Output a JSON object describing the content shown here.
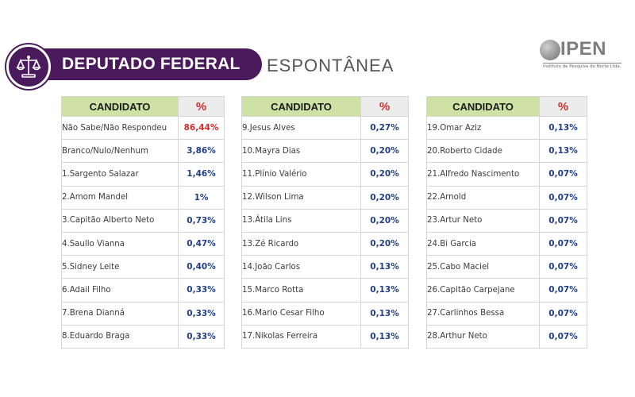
{
  "header": {
    "title": "DEPUTADO FEDERAL",
    "subtitle": "ESPONTÂNEA",
    "badge_icon": "scales-of-justice-icon",
    "colors": {
      "banner": "#4a1a5c",
      "header_bg": "#cfe2a6",
      "percent_header": "#c8312f",
      "value": "#1f3e86",
      "highlight_value": "#d62b2b"
    }
  },
  "logo": {
    "name": "IPEN",
    "tagline": "Instituto de Pesquisa do Norte Ltda."
  },
  "tables": [
    {
      "head": {
        "candidate": "CANDIDATO",
        "percent": "%"
      },
      "rows": [
        {
          "name": "Não Sabe/Não Respondeu",
          "value": "86,44%"
        },
        {
          "name": "Branco/Nulo/Nenhum",
          "value": "3,86%"
        },
        {
          "name": "1.Sargento Salazar",
          "value": "1,46%"
        },
        {
          "name": "2.Amom Mandel",
          "value": "1%"
        },
        {
          "name": "3.Capitão Alberto Neto",
          "value": "0,73%"
        },
        {
          "name": "4.Saullo Vianna",
          "value": "0,47%"
        },
        {
          "name": "5.Sidney Leite",
          "value": "0,40%"
        },
        {
          "name": "6.Adail Filho",
          "value": "0,33%"
        },
        {
          "name": "7.Brena Dianná",
          "value": "0,33%"
        },
        {
          "name": "8.Eduardo Braga",
          "value": "0,33%"
        }
      ]
    },
    {
      "head": {
        "candidate": "CANDIDATO",
        "percent": "%"
      },
      "rows": [
        {
          "name": "9.Jesus Alves",
          "value": "0,27%"
        },
        {
          "name": "10.Mayra Dias",
          "value": "0,20%"
        },
        {
          "name": "11.Plínio Valério",
          "value": "0,20%"
        },
        {
          "name": "12.Wilson Lima",
          "value": "0,20%"
        },
        {
          "name": "13.Átila Lins",
          "value": "0,20%"
        },
        {
          "name": "13.Zé Ricardo",
          "value": "0,20%"
        },
        {
          "name": "14.João Carlos",
          "value": "0,13%"
        },
        {
          "name": "15.Marco Rotta",
          "value": "0,13%"
        },
        {
          "name": "16.Mario Cesar Filho",
          "value": "0,13%"
        },
        {
          "name": "17.Nikolas Ferreira",
          "value": "0,13%"
        }
      ]
    },
    {
      "head": {
        "candidate": "CANDIDATO",
        "percent": "%"
      },
      "rows": [
        {
          "name": "19.Omar Aziz",
          "value": "0,13%"
        },
        {
          "name": "20.Roberto Cidade",
          "value": "0,13%"
        },
        {
          "name": "21.Alfredo Nascimento",
          "value": "0,07%"
        },
        {
          "name": "22.Arnold",
          "value": "0,07%"
        },
        {
          "name": "23.Artur Neto",
          "value": "0,07%"
        },
        {
          "name": "24.Bi Garcia",
          "value": "0,07%"
        },
        {
          "name": "25.Cabo Maciel",
          "value": "0,07%"
        },
        {
          "name": "26.Capitão Carpejane",
          "value": "0,07%"
        },
        {
          "name": "27.Carlinhos Bessa",
          "value": "0,07%"
        },
        {
          "name": "28.Arthur Neto",
          "value": "0,07%"
        }
      ]
    }
  ]
}
